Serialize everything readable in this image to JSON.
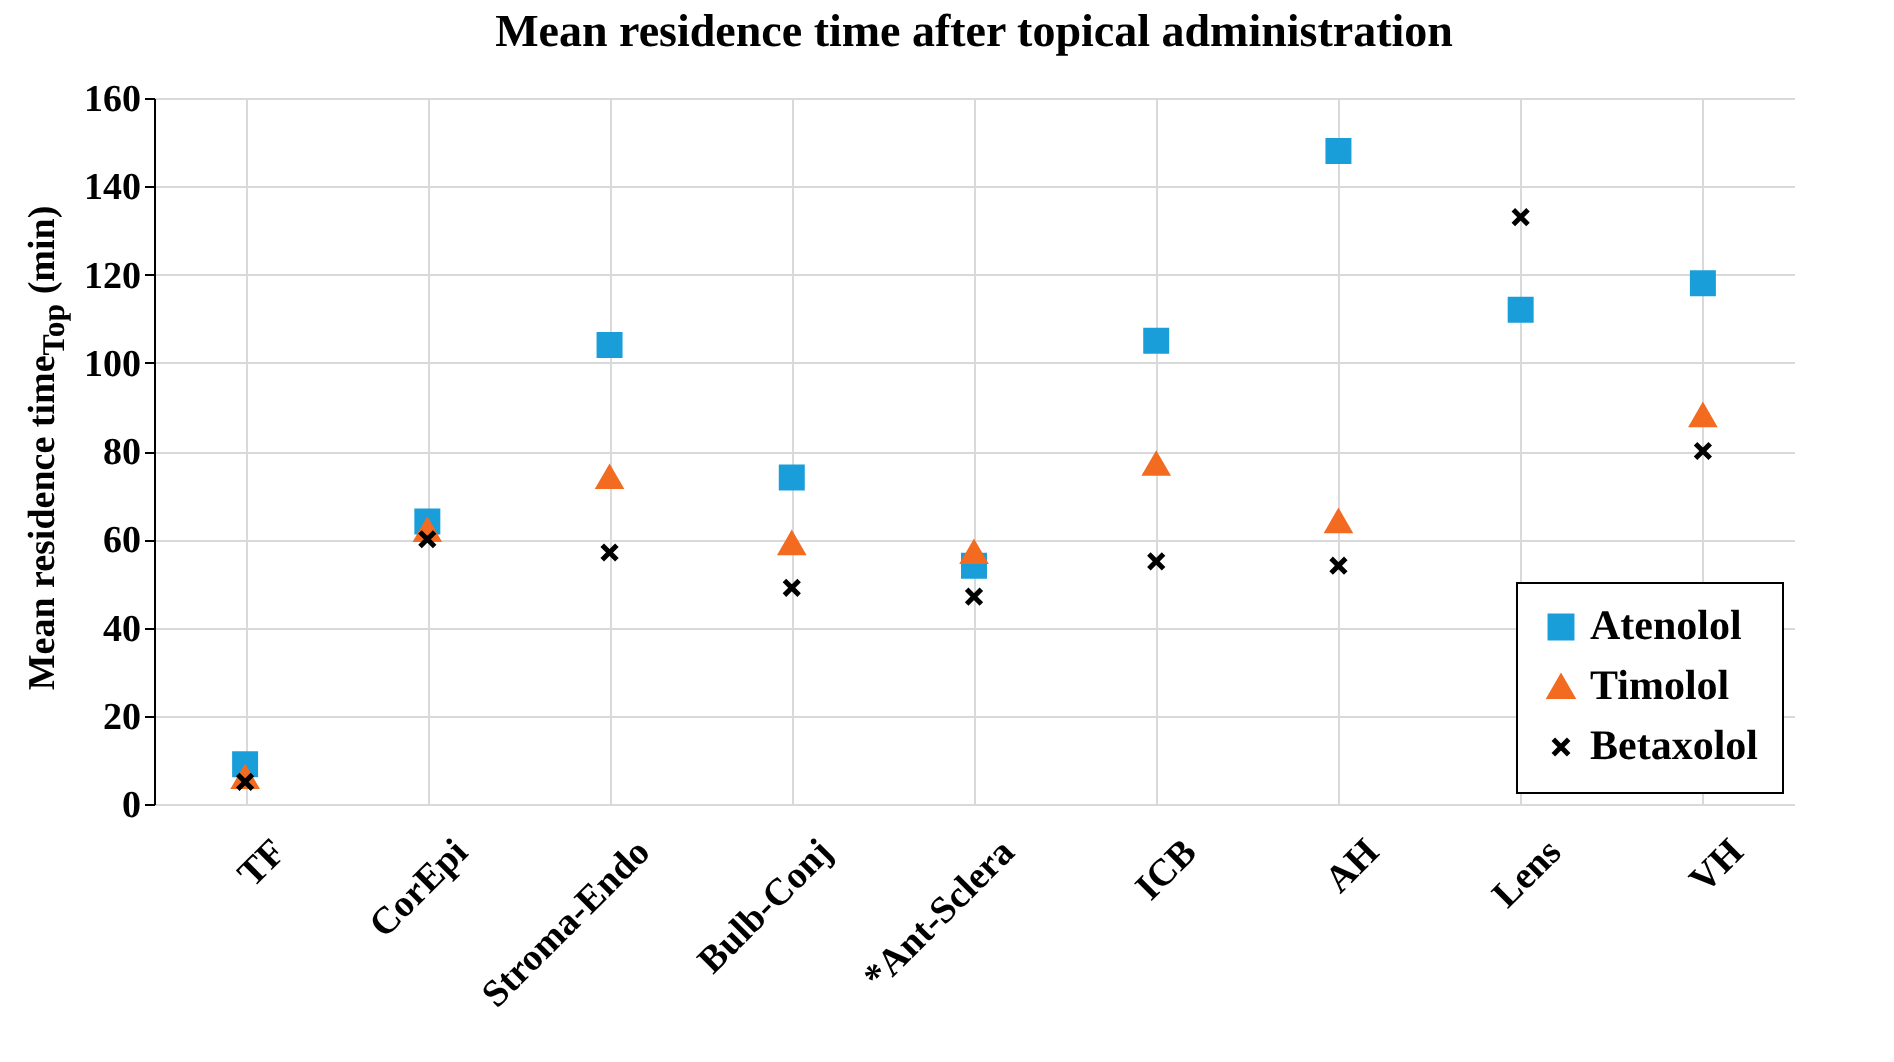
{
  "chart_data": {
    "type": "scatter",
    "title": "Mean residence time after topical administration",
    "ylabel": "Mean residence time$_{Top}$ (min)",
    "categories": [
      "TF",
      "CorEpi",
      "Stroma-Endo",
      "Bulb-Conj",
      "*Ant-Sclera",
      "ICB",
      "AH",
      "Lens",
      "VH"
    ],
    "series": [
      {
        "name": "Atenolol",
        "color": "#1a9ed9",
        "marker": "square",
        "values": [
          9,
          64,
          104,
          74,
          54,
          105,
          148,
          112,
          118
        ]
      },
      {
        "name": "Timolol",
        "color": "#f26b21",
        "marker": "triangle",
        "values": [
          6,
          62,
          74,
          59,
          57,
          77,
          64,
          null,
          88
        ]
      },
      {
        "name": "Betaxolol",
        "color": "#000000",
        "marker": "cross",
        "values": [
          5,
          60,
          57,
          49,
          47,
          55,
          54,
          133,
          80
        ]
      }
    ],
    "ylim": [
      0,
      160
    ],
    "yticks": [
      0,
      20,
      40,
      60,
      80,
      100,
      120,
      140,
      160
    ],
    "grid": true,
    "legend": "bottom right"
  }
}
